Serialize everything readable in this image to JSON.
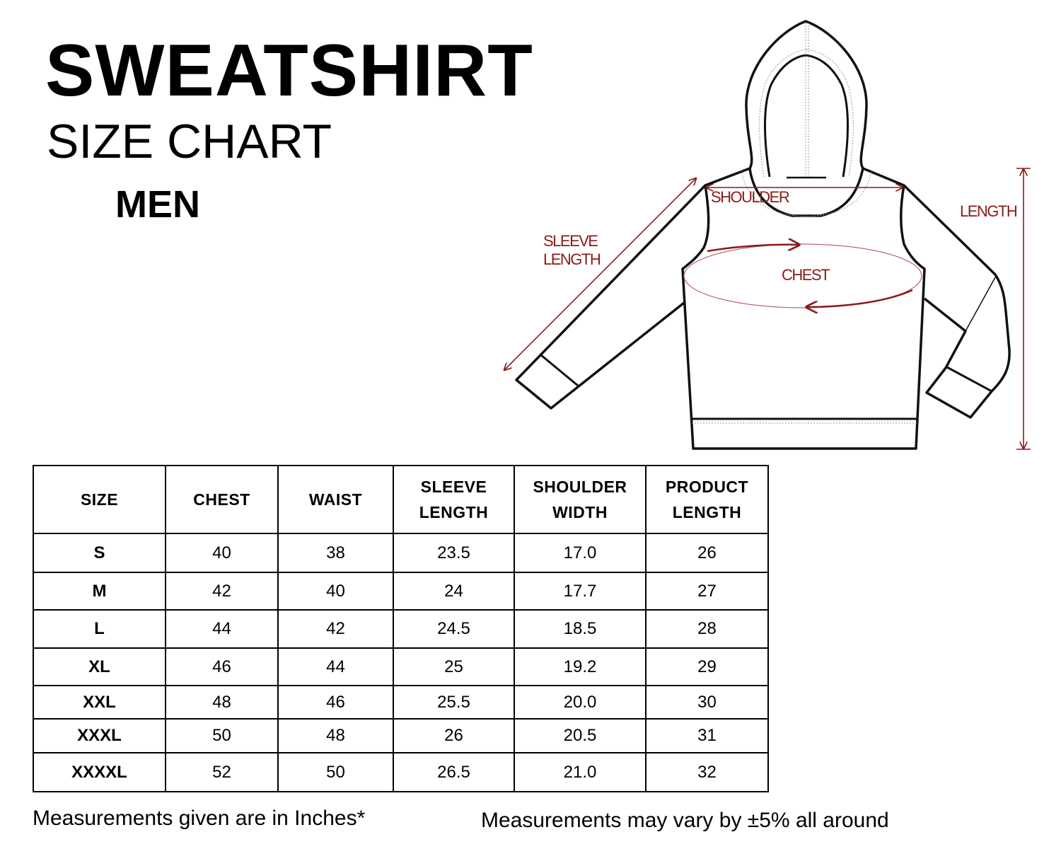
{
  "header": {
    "title": "SWEATSHIRT",
    "subtitle": "SIZE CHART",
    "gender": "MEN"
  },
  "diagram": {
    "labels": {
      "shoulder": "SHOULDER",
      "length": "LENGTH",
      "sleeve_line1": "SLEEVE",
      "sleeve_line2": "LENGTH",
      "chest": "CHEST"
    },
    "measure_color": "#8b1a1a"
  },
  "table": {
    "headers": [
      [
        "SIZE"
      ],
      [
        "CHEST"
      ],
      [
        "WAIST"
      ],
      [
        "SLEEVE",
        "LENGTH"
      ],
      [
        "SHOULDER",
        "WIDTH"
      ],
      [
        "PRODUCT",
        "LENGTH"
      ]
    ],
    "rows": [
      [
        "S",
        "40",
        "38",
        "23.5",
        "17.0",
        "26"
      ],
      [
        "M",
        "42",
        "40",
        "24",
        "17.7",
        "27"
      ],
      [
        "L",
        "44",
        "42",
        "24.5",
        "18.5",
        "28"
      ],
      [
        "XL",
        "46",
        "44",
        "25",
        "19.2",
        "29"
      ],
      [
        "XXL",
        "48",
        "46",
        "25.5",
        "20.0",
        "30"
      ],
      [
        "XXXL",
        "50",
        "48",
        "26",
        "20.5",
        "31"
      ],
      [
        "XXXXL",
        "52",
        "50",
        "26.5",
        "21.0",
        "32"
      ]
    ]
  },
  "footer": {
    "units_note": "Measurements given are in Inches*",
    "variance_note": "Measurements may vary by ±5% all around"
  }
}
